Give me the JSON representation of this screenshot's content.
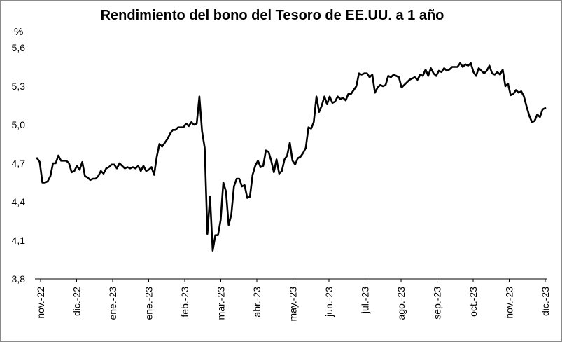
{
  "chart_data": {
    "type": "line",
    "title": "Rendimiento del bono del Tesoro de EE.UU. a 1 año",
    "ylabel": "%",
    "xlabel": "",
    "ylim": [
      3.8,
      5.6
    ],
    "yticks": [
      "3,8",
      "4,1",
      "4,4",
      "4,7",
      "5,0",
      "5,3",
      "5,6"
    ],
    "ytick_values": [
      3.8,
      4.1,
      4.4,
      4.7,
      5.0,
      5.3,
      5.6
    ],
    "xticks": [
      "nov.-22",
      "dic.-22",
      "ene.-23",
      "ene.-23",
      "feb.-23",
      "mar.-23",
      "abr.-23",
      "may.-23",
      "jun.-23",
      "jul.-23",
      "ago.-23",
      "sep.-23",
      "oct.-23",
      "nov.-23",
      "dic.-23"
    ],
    "grid": false,
    "legend": "none",
    "line_color": "#000000",
    "series": [
      {
        "x_start": "2022-11-01",
        "x_end": "2023-12-20",
        "values": [
          4.74,
          4.71,
          4.55,
          4.55,
          4.56,
          4.6,
          4.7,
          4.7,
          4.76,
          4.72,
          4.72,
          4.72,
          4.7,
          4.63,
          4.64,
          4.68,
          4.65,
          4.71,
          4.6,
          4.59,
          4.57,
          4.58,
          4.58,
          4.6,
          4.64,
          4.62,
          4.66,
          4.67,
          4.69,
          4.69,
          4.66,
          4.7,
          4.68,
          4.66,
          4.67,
          4.66,
          4.67,
          4.66,
          4.68,
          4.64,
          4.68,
          4.64,
          4.65,
          4.67,
          4.61,
          4.75,
          4.85,
          4.83,
          4.86,
          4.89,
          4.93,
          4.96,
          4.96,
          4.98,
          4.98,
          4.98,
          5.01,
          4.99,
          5.02,
          5.0,
          5.01,
          5.22,
          4.95,
          4.82,
          4.15,
          4.44,
          4.02,
          4.14,
          4.14,
          4.26,
          4.55,
          4.48,
          4.22,
          4.3,
          4.52,
          4.58,
          4.58,
          4.52,
          4.53,
          4.43,
          4.44,
          4.61,
          4.68,
          4.72,
          4.67,
          4.68,
          4.8,
          4.79,
          4.72,
          4.63,
          4.73,
          4.62,
          4.64,
          4.73,
          4.76,
          4.86,
          4.72,
          4.69,
          4.74,
          4.75,
          4.78,
          4.82,
          4.98,
          4.97,
          5.02,
          5.22,
          5.1,
          5.15,
          5.22,
          5.16,
          5.22,
          5.17,
          5.18,
          5.22,
          5.2,
          5.21,
          5.19,
          5.24,
          5.24,
          5.27,
          5.3,
          5.4,
          5.39,
          5.4,
          5.4,
          5.37,
          5.39,
          5.25,
          5.29,
          5.31,
          5.3,
          5.31,
          5.38,
          5.37,
          5.39,
          5.38,
          5.37,
          5.29,
          5.31,
          5.33,
          5.35,
          5.36,
          5.37,
          5.35,
          5.39,
          5.38,
          5.43,
          5.38,
          5.44,
          5.4,
          5.38,
          5.42,
          5.41,
          5.44,
          5.42,
          5.43,
          5.45,
          5.45,
          5.45,
          5.48,
          5.45,
          5.47,
          5.46,
          5.48,
          5.41,
          5.38,
          5.44,
          5.42,
          5.4,
          5.42,
          5.46,
          5.4,
          5.39,
          5.41,
          5.39,
          5.43,
          5.3,
          5.32,
          5.23,
          5.24,
          5.27,
          5.25,
          5.26,
          5.22,
          5.14,
          5.07,
          5.02,
          5.03,
          5.08,
          5.06,
          5.12,
          5.13
        ]
      }
    ]
  }
}
